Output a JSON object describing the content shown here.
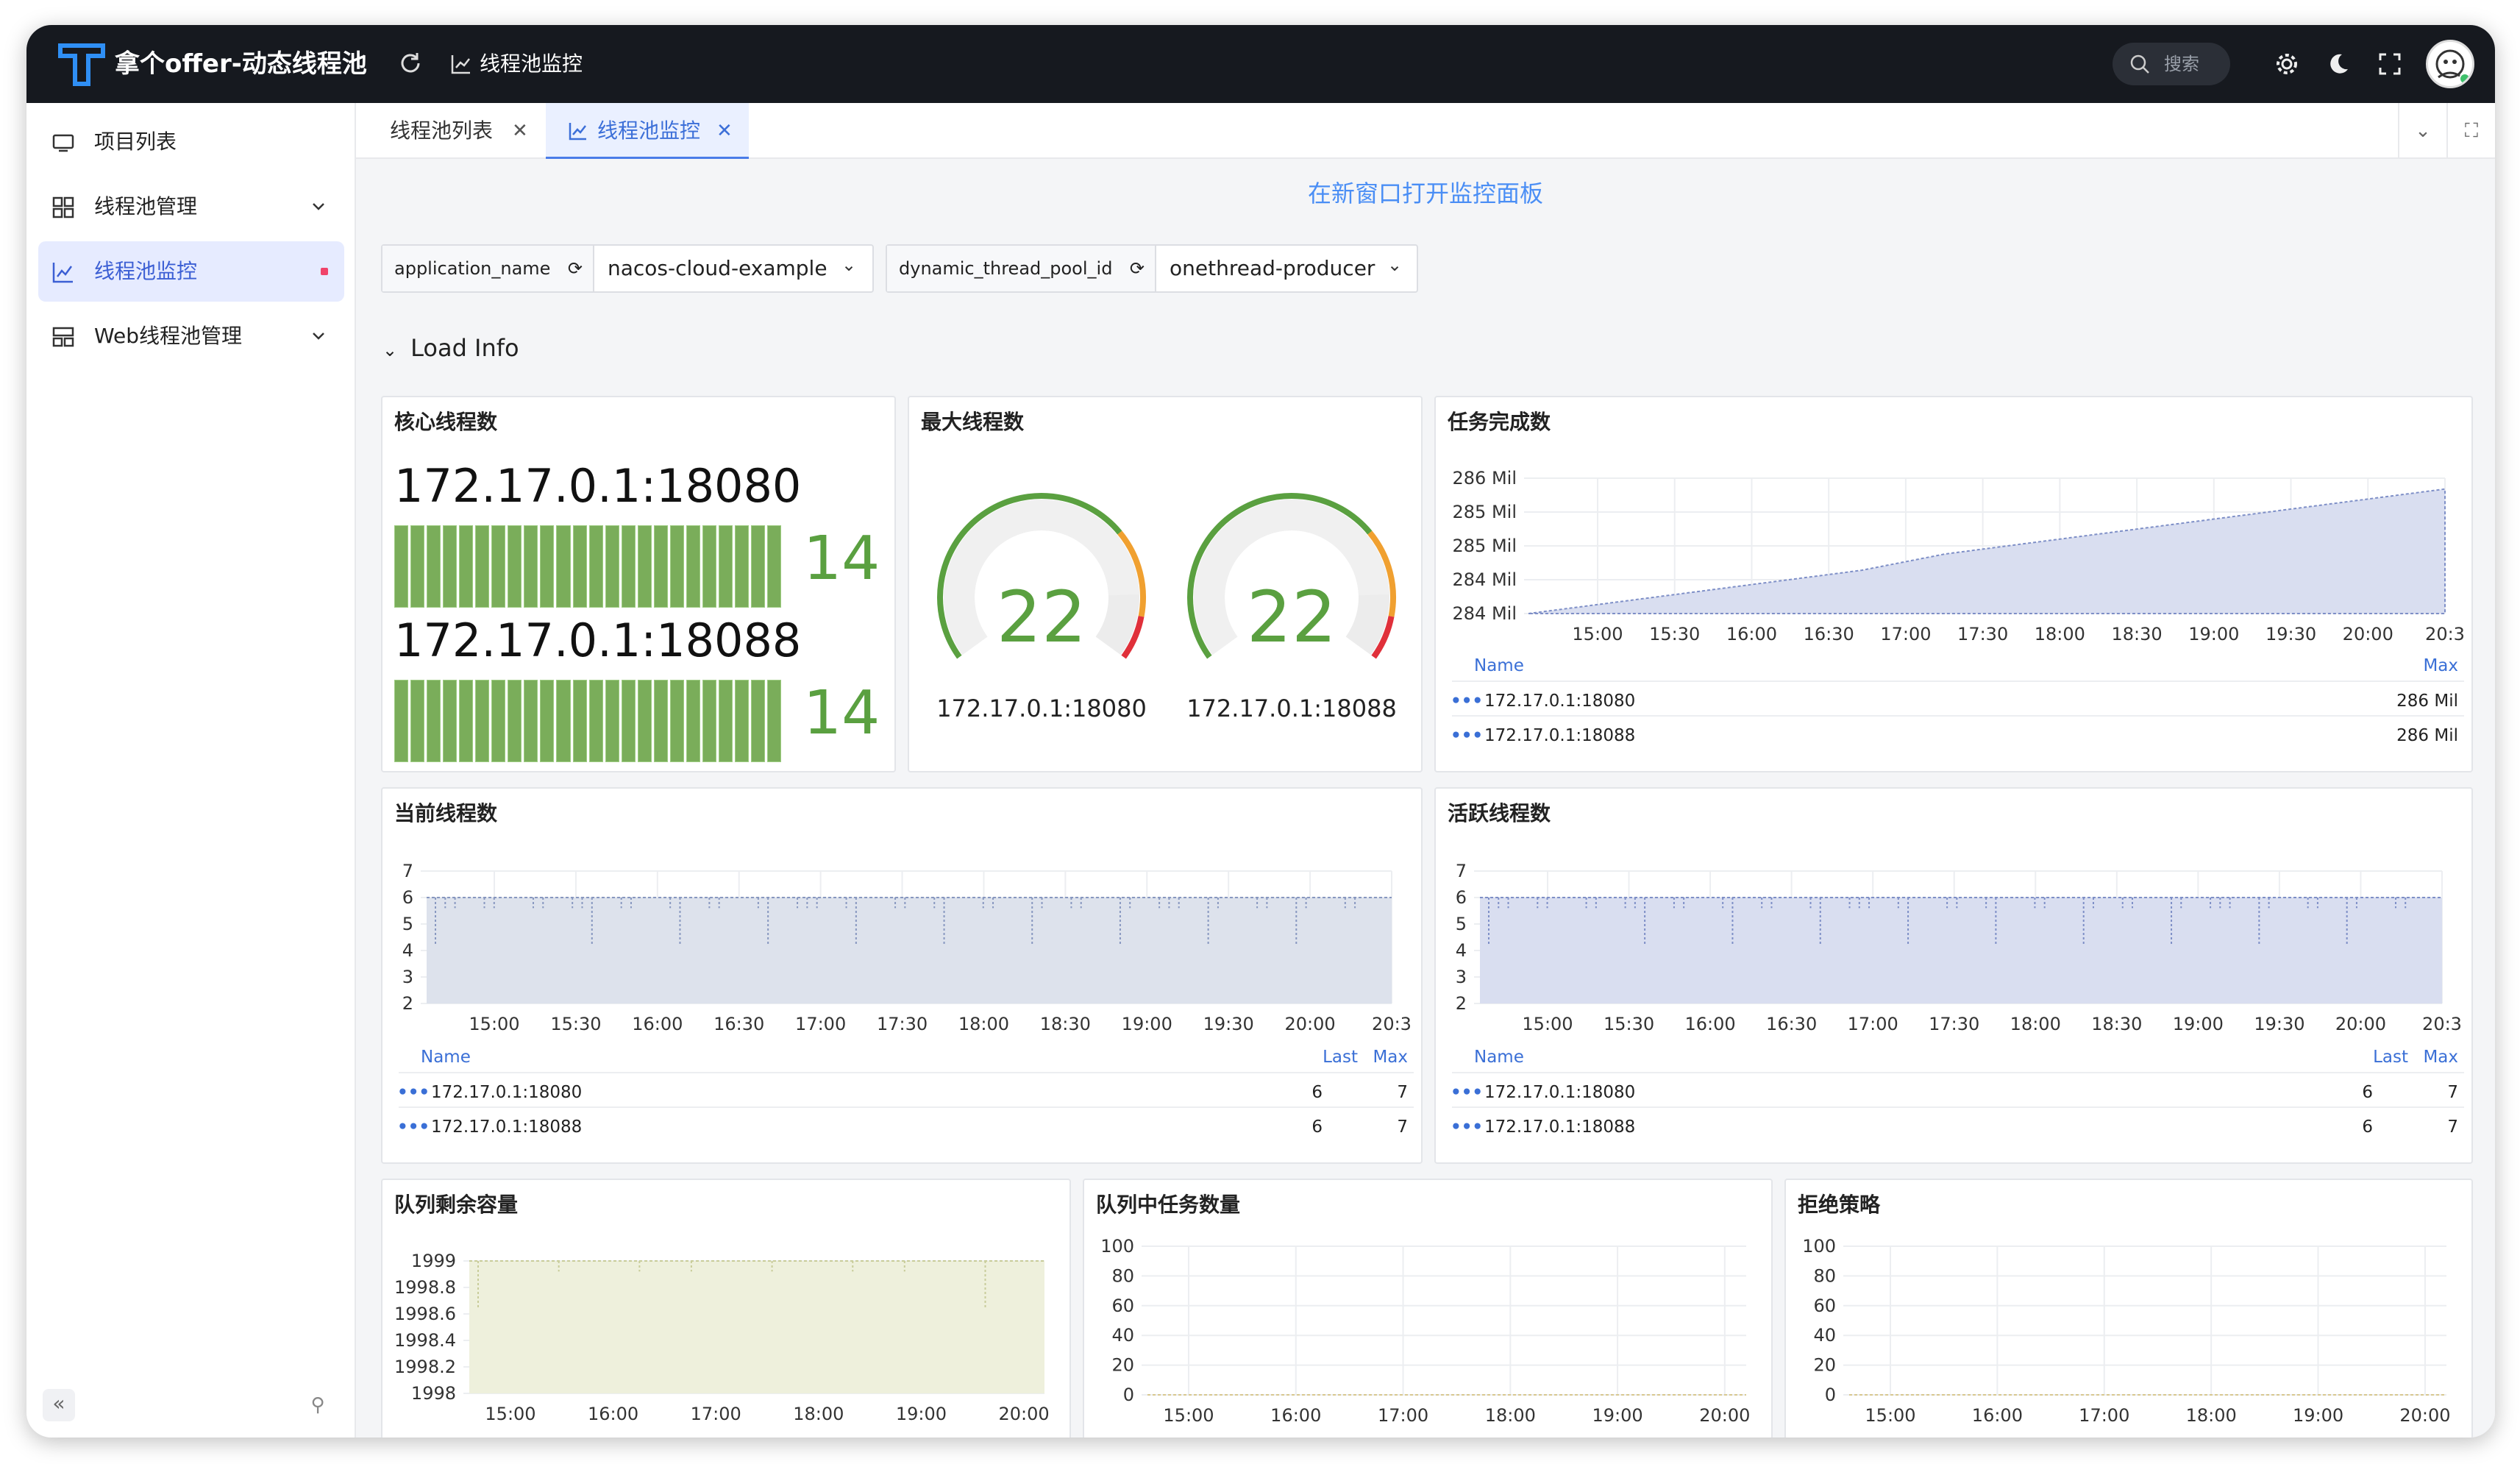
{
  "app": {
    "title": "拿个offer-动态线程池",
    "breadcrumb": "线程池监控",
    "search_placeholder": "搜索",
    "colors": {
      "header": "#16191f",
      "accent": "#3c6fd8"
    }
  },
  "sidebar": {
    "items": [
      {
        "label": "项目列表",
        "icon": "monitor-icon"
      },
      {
        "label": "线程池管理",
        "icon": "grid-icon",
        "expandable": true
      },
      {
        "label": "线程池监控",
        "icon": "chart-icon",
        "active": true
      },
      {
        "label": "Web线程池管理",
        "icon": "layout-icon",
        "expandable": true
      }
    ]
  },
  "tabs": [
    {
      "label": "线程池列表",
      "active": false
    },
    {
      "label": "线程池监控",
      "active": true
    }
  ],
  "dashboard": {
    "open_link": "在新窗口打开监控面板",
    "variables": [
      {
        "label": "application_name",
        "value": "nacos-cloud-example"
      },
      {
        "label": "dynamic_thread_pool_id",
        "value": "onethread-producer"
      }
    ],
    "row_title": "Load Info",
    "core": {
      "title": "核心线程数",
      "items": [
        {
          "host": "172.17.0.1:18080",
          "value": "14"
        },
        {
          "host": "172.17.0.1:18088",
          "value": "14"
        }
      ]
    },
    "max": {
      "title": "最大线程数",
      "items": [
        {
          "host": "172.17.0.1:18080",
          "value": "22",
          "fraction": 0.85
        },
        {
          "host": "172.17.0.1:18088",
          "value": "22",
          "fraction": 0.85
        }
      ]
    },
    "legend_headers": {
      "name": "Name",
      "last": "Last",
      "max": "Max"
    }
  },
  "chart_data": [
    {
      "type": "area",
      "title": "任务完成数",
      "x": [
        "15:00",
        "15:30",
        "16:00",
        "16:30",
        "17:00",
        "17:30",
        "18:00",
        "18:30",
        "19:00",
        "19:30",
        "20:00",
        "20:3"
      ],
      "y_ticks": [
        "284 Mil",
        "284 Mil",
        "285 Mil",
        "285 Mil",
        "286 Mil"
      ],
      "ylim": [
        283.8,
        286.3
      ],
      "series": [
        {
          "name": "172.17.0.1:18080",
          "values": [
            283.8,
            284.0,
            284.2,
            284.4,
            284.6,
            284.9,
            285.1,
            285.3,
            285.5,
            285.7,
            285.9,
            286.1
          ],
          "max": "286 Mil"
        },
        {
          "name": "172.17.0.1:18088",
          "values": [
            283.8,
            284.0,
            284.2,
            284.4,
            284.6,
            284.9,
            285.1,
            285.3,
            285.5,
            285.7,
            285.9,
            286.1
          ],
          "max": "286 Mil"
        }
      ]
    },
    {
      "type": "area",
      "title": "当前线程数",
      "x": [
        "15:00",
        "15:30",
        "16:00",
        "16:30",
        "17:00",
        "17:30",
        "18:00",
        "18:30",
        "19:00",
        "19:30",
        "20:00",
        "20:3"
      ],
      "y_ticks": [
        "2",
        "3",
        "4",
        "5",
        "6",
        "7"
      ],
      "ylim": [
        2,
        7
      ],
      "series": [
        {
          "name": "172.17.0.1:18080",
          "last": "6",
          "max": "7",
          "level": 6
        },
        {
          "name": "172.17.0.1:18088",
          "last": "6",
          "max": "7",
          "level": 6
        }
      ]
    },
    {
      "type": "area",
      "title": "活跃线程数",
      "x": [
        "15:00",
        "15:30",
        "16:00",
        "16:30",
        "17:00",
        "17:30",
        "18:00",
        "18:30",
        "19:00",
        "19:30",
        "20:00",
        "20:3"
      ],
      "y_ticks": [
        "2",
        "3",
        "4",
        "5",
        "6",
        "7"
      ],
      "ylim": [
        2,
        7
      ],
      "series": [
        {
          "name": "172.17.0.1:18080",
          "last": "6",
          "max": "7",
          "level": 6
        },
        {
          "name": "172.17.0.1:18088",
          "last": "6",
          "max": "7",
          "level": 6
        }
      ]
    },
    {
      "type": "area",
      "title": "队列剩余容量",
      "x": [
        "15:00",
        "16:00",
        "17:00",
        "18:00",
        "19:00",
        "20:00"
      ],
      "y_ticks": [
        "1998",
        "1998.2",
        "1998.4",
        "1998.6",
        "1998.8",
        "1999"
      ],
      "ylim": [
        1998,
        1999
      ],
      "level": 1999
    },
    {
      "type": "line",
      "title": "队列中任务数量",
      "x": [
        "15:00",
        "16:00",
        "17:00",
        "18:00",
        "19:00",
        "20:00"
      ],
      "y_ticks": [
        "0",
        "20",
        "40",
        "60",
        "80",
        "100"
      ],
      "ylim": [
        0,
        100
      ],
      "level": 0
    },
    {
      "type": "line",
      "title": "拒绝策略",
      "x": [
        "15:00",
        "16:00",
        "17:00",
        "18:00",
        "19:00",
        "20:00"
      ],
      "y_ticks": [
        "0",
        "20",
        "40",
        "60",
        "80",
        "100"
      ],
      "ylim": [
        0,
        100
      ],
      "level": 0
    }
  ]
}
